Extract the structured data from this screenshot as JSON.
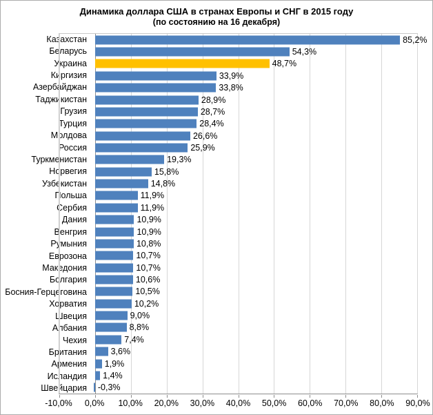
{
  "chart_data": {
    "type": "bar",
    "orientation": "horizontal",
    "title": "Динамика доллара США в странах Европы и СНГ в 2015 году",
    "subtitle": "(по состоянию на 16 декабря)",
    "xlabel": "",
    "ylabel": "",
    "xlim": [
      -10,
      90
    ],
    "tick_step": 10,
    "grid": true,
    "legend": "none",
    "x_ticks": [
      "-10,0%",
      "0,0%",
      "10,0%",
      "20,0%",
      "30,0%",
      "40,0%",
      "50,0%",
      "60,0%",
      "70,0%",
      "80,0%",
      "90,0%"
    ],
    "categories": [
      "Казахстан",
      "Беларусь",
      "Украина",
      "Киргизия",
      "Азербайджан",
      "Таджикистан",
      "Грузия",
      "Турция",
      "Молдова",
      "Россия",
      "Туркменистан",
      "Норвегия",
      "Узбекистан",
      "Польша",
      "Сербия",
      "Дания",
      "Венгрия",
      "Румыния",
      "Еврозона",
      "Македония",
      "Болгария",
      "Босния-Герцеговина",
      "Хорватия",
      "Швеция",
      "Албания",
      "Чехия",
      "Британия",
      "Армения",
      "Исландия",
      "Швейцария"
    ],
    "values": [
      85.2,
      54.3,
      48.7,
      33.9,
      33.8,
      28.9,
      28.7,
      28.4,
      26.6,
      25.9,
      19.3,
      15.8,
      14.8,
      11.9,
      11.9,
      10.9,
      10.9,
      10.8,
      10.7,
      10.7,
      10.6,
      10.5,
      10.2,
      9.0,
      8.8,
      7.4,
      3.6,
      1.9,
      1.4,
      -0.3
    ],
    "value_labels": [
      "85,2%",
      "54,3%",
      "48,7%",
      "33,9%",
      "33,8%",
      "28,9%",
      "28,7%",
      "28,4%",
      "26,6%",
      "25,9%",
      "19,3%",
      "15,8%",
      "14,8%",
      "11,9%",
      "11,9%",
      "10,9%",
      "10,9%",
      "10,8%",
      "10,7%",
      "10,7%",
      "10,6%",
      "10,5%",
      "10,2%",
      "9,0%",
      "8,8%",
      "7,4%",
      "3,6%",
      "1,9%",
      "1,4%",
      "-0,3%"
    ],
    "highlight_category": "Украина",
    "bar_color": "#4f81bd",
    "highlight_color": "#ffc000",
    "grid_color": "#d6d6d6",
    "axis_color": "#8c8c8c"
  }
}
